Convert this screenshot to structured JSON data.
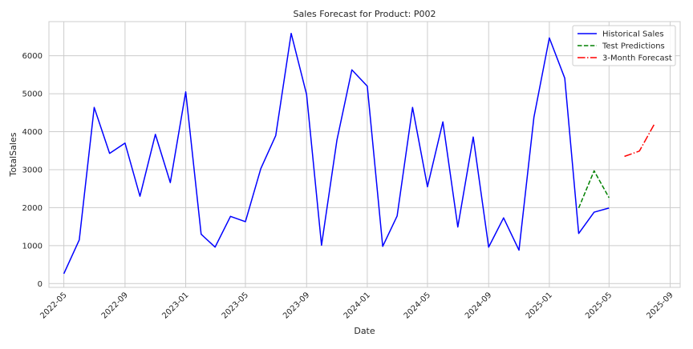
{
  "chart_data": {
    "type": "line",
    "title": "Sales Forecast for Product: P002",
    "xlabel": "Date",
    "ylabel": "TotalSales",
    "xlim": [
      "2022-04-01",
      "2025-09-21"
    ],
    "ylim": [
      -100,
      6900
    ],
    "x_ticks": [
      "2022-05",
      "2022-09",
      "2023-01",
      "2023-05",
      "2023-09",
      "2024-01",
      "2024-05",
      "2024-09",
      "2025-01",
      "2025-05",
      "2025-09"
    ],
    "y_ticks": [
      0,
      1000,
      2000,
      3000,
      4000,
      5000,
      6000
    ],
    "grid": true,
    "legend_position": "top-right",
    "series": [
      {
        "name": "Historical Sales",
        "color": "#0000ff",
        "style": "solid",
        "x": [
          "2022-05-01",
          "2022-06-01",
          "2022-07-01",
          "2022-08-01",
          "2022-09-01",
          "2022-10-01",
          "2022-11-01",
          "2022-12-01",
          "2023-01-01",
          "2023-02-01",
          "2023-03-01",
          "2023-04-01",
          "2023-05-01",
          "2023-06-01",
          "2023-07-01",
          "2023-08-01",
          "2023-09-01",
          "2023-10-01",
          "2023-11-01",
          "2023-12-01",
          "2024-01-01",
          "2024-02-01",
          "2024-03-01",
          "2024-04-01",
          "2024-05-01",
          "2024-06-01",
          "2024-07-01",
          "2024-08-01",
          "2024-09-01",
          "2024-10-01",
          "2024-11-01",
          "2024-12-01",
          "2025-01-01",
          "2025-02-01",
          "2025-03-01",
          "2025-04-01",
          "2025-05-01"
        ],
        "values": [
          260,
          1150,
          4640,
          3430,
          3700,
          2300,
          3930,
          2660,
          5050,
          1300,
          960,
          1770,
          1630,
          3030,
          3900,
          6590,
          4980,
          1010,
          3780,
          5630,
          5200,
          980,
          1780,
          4640,
          2550,
          4260,
          1490,
          3860,
          960,
          1730,
          880,
          4380,
          6470,
          5410,
          1320,
          1880,
          1990
        ]
      },
      {
        "name": "Test Predictions",
        "color": "#008000",
        "style": "dashed",
        "x": [
          "2025-03-01",
          "2025-04-01",
          "2025-05-01"
        ],
        "values": [
          1990,
          2970,
          2260
        ]
      },
      {
        "name": "3-Month Forecast",
        "color": "#ff0000",
        "style": "dashdot",
        "x": [
          "2025-06-01",
          "2025-07-01",
          "2025-08-01"
        ],
        "values": [
          3350,
          3490,
          4220
        ]
      }
    ]
  }
}
